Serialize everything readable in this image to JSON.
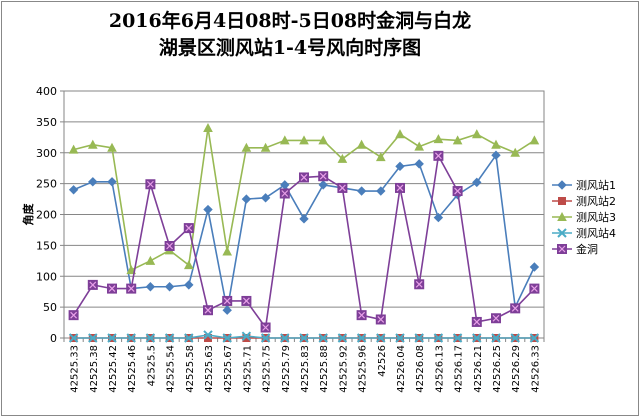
{
  "chart_data": {
    "type": "line",
    "title_line1": "2016年6月4日08时-5日08时金洞与白龙",
    "title_line2": "湖景区测风站1-4号风向时序图",
    "ylabel": "角度",
    "ylim": [
      0,
      400
    ],
    "yticks": [
      "0",
      "50",
      "100",
      "150",
      "200",
      "250",
      "300",
      "350",
      "400"
    ],
    "grid": true,
    "legend_position": "right",
    "categories": [
      "42525.33",
      "42525.38",
      "42525.42",
      "42525.46",
      "42525.5",
      "42525.54",
      "42525.58",
      "42525.63",
      "42525.67",
      "42525.71",
      "42525.75",
      "42525.79",
      "42525.83",
      "42525.88",
      "42525.92",
      "42525.96",
      "42526",
      "42526.04",
      "42526.08",
      "42526.13",
      "42526.17",
      "42526.21",
      "42526.25",
      "42526.29",
      "42526.33"
    ],
    "series": [
      {
        "name": "测风站1",
        "color": "#4a7ebb",
        "marker": "diamond",
        "values": [
          240,
          253,
          253,
          80,
          83,
          83,
          86,
          208,
          45,
          225,
          227,
          248,
          193,
          248,
          243,
          238,
          238,
          278,
          282,
          195,
          232,
          252,
          296,
          50,
          115
        ]
      },
      {
        "name": "测风站2",
        "color": "#be4b48",
        "marker": "square",
        "values": [
          0,
          0,
          0,
          0,
          0,
          0,
          0,
          0,
          0,
          0,
          0,
          0,
          0,
          0,
          0,
          0,
          0,
          0,
          0,
          0,
          0,
          0,
          0,
          0,
          0
        ]
      },
      {
        "name": "测风站3",
        "color": "#98b954",
        "marker": "triangle",
        "values": [
          305,
          313,
          308,
          110,
          125,
          142,
          118,
          340,
          140,
          308,
          308,
          320,
          320,
          320,
          290,
          313,
          293,
          330,
          310,
          322,
          320,
          330,
          313,
          300,
          320
        ]
      },
      {
        "name": "测风站4",
        "color": "#4bacc6",
        "marker": "x",
        "values": [
          0,
          0,
          0,
          0,
          0,
          0,
          0,
          5,
          0,
          3,
          0,
          0,
          0,
          0,
          0,
          0,
          0,
          0,
          0,
          0,
          0,
          0,
          0,
          0,
          0
        ]
      },
      {
        "name": "金洞",
        "color": "#7e3f98",
        "marker": "xsquare",
        "values": [
          37,
          86,
          80,
          80,
          249,
          149,
          178,
          45,
          60,
          60,
          17,
          234,
          260,
          262,
          243,
          37,
          30,
          243,
          87,
          295,
          238,
          26,
          32,
          48,
          80
        ]
      }
    ]
  }
}
